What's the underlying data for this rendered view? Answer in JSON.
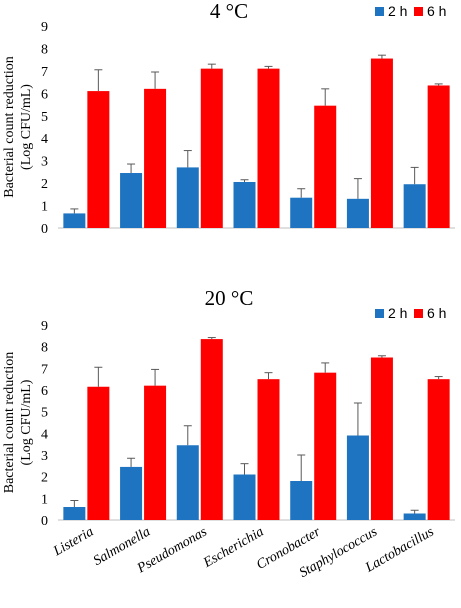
{
  "colors": {
    "series_2h": "#1f74c2",
    "series_6h": "#fe0000",
    "axis": "#bfbfbf",
    "error": "#595959"
  },
  "chart_data": [
    {
      "type": "bar",
      "title": "4 °C",
      "ylabel_line1": "Bacterial count reduction",
      "ylabel_line2": "(Log CFU/mL)",
      "ylim": [
        0,
        9
      ],
      "yticks": [
        "0",
        "1",
        "2",
        "3",
        "4",
        "5",
        "6",
        "7",
        "8",
        "9"
      ],
      "categories": [
        "Listeria",
        "Salmonella",
        "Pseudomonas",
        "Escherichia",
        "Cronobacter",
        "Staphylococcus",
        "Lactobacillus"
      ],
      "show_category_labels": false,
      "legend_position": "top-right",
      "series": [
        {
          "name": "2 h",
          "values": [
            0.65,
            2.45,
            2.7,
            2.05,
            1.35,
            1.3,
            1.95
          ],
          "errors": [
            0.2,
            0.4,
            0.75,
            0.1,
            0.4,
            0.9,
            0.75
          ]
        },
        {
          "name": "6 h",
          "values": [
            6.1,
            6.2,
            7.1,
            7.1,
            5.45,
            7.55,
            6.35
          ],
          "errors": [
            0.95,
            0.75,
            0.2,
            0.1,
            0.75,
            0.15,
            0.07
          ]
        }
      ]
    },
    {
      "type": "bar",
      "title": "20 °C",
      "ylabel_line1": "Bacterial count reduction",
      "ylabel_line2": "(Log CFU/mL)",
      "ylim": [
        0,
        9
      ],
      "yticks": [
        "0",
        "1",
        "2",
        "3",
        "4",
        "5",
        "6",
        "7",
        "8",
        "9"
      ],
      "categories": [
        "Listeria",
        "Salmonella",
        "Pseudomonas",
        "Escherichia",
        "Cronobacter",
        "Staphylococcus",
        "Lactobacillus"
      ],
      "show_category_labels": true,
      "legend_position": "top-right",
      "series": [
        {
          "name": "2 h",
          "values": [
            0.6,
            2.45,
            3.45,
            2.1,
            1.8,
            3.9,
            0.3
          ],
          "errors": [
            0.3,
            0.4,
            0.9,
            0.5,
            1.2,
            1.5,
            0.15
          ]
        },
        {
          "name": "6 h",
          "values": [
            6.15,
            6.2,
            8.35,
            6.5,
            6.8,
            7.5,
            6.5
          ],
          "errors": [
            0.9,
            0.75,
            0.07,
            0.3,
            0.45,
            0.08,
            0.12
          ]
        }
      ]
    }
  ]
}
